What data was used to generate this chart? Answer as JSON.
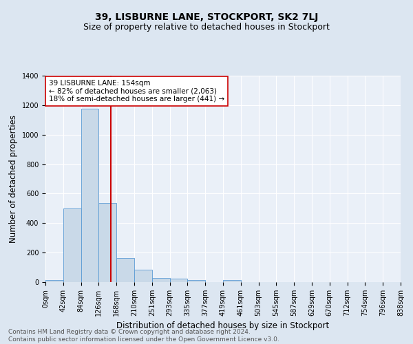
{
  "title": "39, LISBURNE LANE, STOCKPORT, SK2 7LJ",
  "subtitle": "Size of property relative to detached houses in Stockport",
  "xlabel": "Distribution of detached houses by size in Stockport",
  "ylabel": "Number of detached properties",
  "bin_labels": [
    "0sqm",
    "42sqm",
    "84sqm",
    "126sqm",
    "168sqm",
    "210sqm",
    "251sqm",
    "293sqm",
    "335sqm",
    "377sqm",
    "419sqm",
    "461sqm",
    "503sqm",
    "545sqm",
    "587sqm",
    "629sqm",
    "670sqm",
    "712sqm",
    "754sqm",
    "796sqm",
    "838sqm"
  ],
  "bar_heights": [
    15,
    500,
    1175,
    535,
    165,
    85,
    30,
    25,
    15,
    0,
    15,
    0,
    0,
    0,
    0,
    0,
    0,
    0,
    0,
    0
  ],
  "bar_color": "#c9d9e8",
  "bar_edge_color": "#5b9bd5",
  "vline_color": "#cc0000",
  "annotation_text": "39 LISBURNE LANE: 154sqm\n← 82% of detached houses are smaller (2,063)\n18% of semi-detached houses are larger (441) →",
  "annotation_box_color": "white",
  "annotation_box_edge": "#cc0000",
  "ylim": [
    0,
    1400
  ],
  "yticks": [
    0,
    200,
    400,
    600,
    800,
    1000,
    1200,
    1400
  ],
  "footnote": "Contains HM Land Registry data © Crown copyright and database right 2024.\nContains public sector information licensed under the Open Government Licence v3.0.",
  "bg_color": "#dce6f1",
  "plot_bg_color": "#eaf0f8",
  "title_fontsize": 10,
  "subtitle_fontsize": 9,
  "axis_label_fontsize": 8.5,
  "tick_fontsize": 7,
  "annotation_fontsize": 7.5,
  "footnote_fontsize": 6.5
}
